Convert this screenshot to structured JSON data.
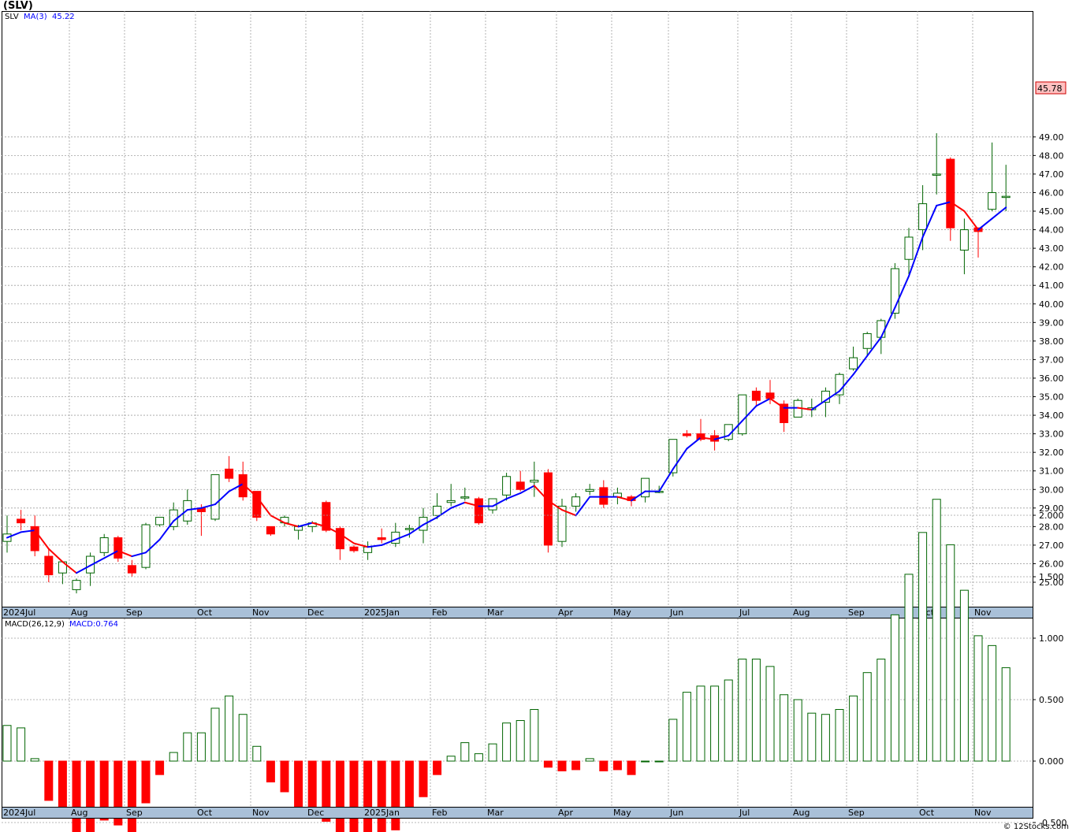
{
  "title": "(SLV)",
  "credit": "© 12Stocks.com",
  "price_panel": {
    "legend_symbol": "SLV",
    "legend_ma": "MA(3)",
    "legend_ma_value": "45.22",
    "last_price_tag": "45.78",
    "y_ticks": [
      "25.00",
      "26.00",
      "27.00",
      "28.00",
      "29.00",
      "30.00",
      "31.00",
      "32.00",
      "33.00",
      "34.00",
      "35.00",
      "36.00",
      "37.00",
      "38.00",
      "39.00",
      "40.00",
      "41.00",
      "42.00",
      "43.00",
      "44.00",
      "45.00",
      "46.00",
      "47.00",
      "48.00",
      "49.00"
    ]
  },
  "macd_panel": {
    "legend_name": "MACD(26,12,9)",
    "legend_value": "MACD:0.764",
    "y_ticks": [
      "-0.500",
      "0.000",
      "0.500",
      "1.000",
      "1.500",
      "2.000"
    ]
  },
  "x_ticks": [
    "2024Jul",
    "Aug",
    "Sep",
    "Oct",
    "Nov",
    "Dec",
    "2025Jan",
    "Feb",
    "Mar",
    "Apr",
    "May",
    "Jun",
    "Jul",
    "Aug",
    "Sep",
    "Oct",
    "Nov"
  ],
  "colors": {
    "up": "#006400",
    "down": "#ff0000",
    "ma_up": "#0000ff",
    "ma_down": "#ff0000",
    "grid": "#a0a0a0"
  },
  "chart_data": [
    {
      "type": "candlestick",
      "title": "(SLV)",
      "ylim": [
        24.4,
        49.5
      ],
      "grid": true,
      "series": [
        {
          "name": "SLV",
          "candles": [
            [
              27.2,
              28.6,
              26.6,
              27.6
            ],
            [
              28.4,
              28.9,
              27.8,
              28.2
            ],
            [
              28.0,
              28.6,
              26.4,
              26.7
            ],
            [
              26.4,
              26.8,
              25.0,
              25.4
            ],
            [
              25.5,
              26.1,
              24.9,
              26.1
            ],
            [
              24.6,
              25.2,
              24.4,
              25.1
            ],
            [
              25.5,
              26.6,
              24.8,
              26.4
            ],
            [
              26.6,
              27.6,
              26.4,
              27.4
            ],
            [
              27.4,
              27.5,
              26.1,
              26.3
            ],
            [
              25.9,
              26.2,
              25.3,
              25.5
            ],
            [
              25.8,
              28.2,
              25.7,
              28.1
            ],
            [
              28.1,
              28.5,
              28.0,
              28.5
            ],
            [
              28.0,
              29.3,
              27.8,
              28.9
            ],
            [
              28.3,
              30.0,
              28.1,
              29.4
            ],
            [
              29.0,
              29.2,
              27.5,
              28.8
            ],
            [
              28.4,
              30.7,
              28.3,
              30.8
            ],
            [
              31.1,
              31.8,
              30.4,
              30.6
            ],
            [
              30.8,
              31.5,
              29.4,
              29.6
            ],
            [
              29.9,
              29.9,
              28.3,
              28.5
            ],
            [
              28.0,
              28.0,
              27.5,
              27.6
            ],
            [
              28.2,
              28.6,
              28.0,
              28.5
            ],
            [
              27.8,
              28.1,
              27.3,
              28.0
            ],
            [
              28.0,
              28.3,
              27.7,
              28.2
            ],
            [
              29.3,
              29.4,
              27.7,
              27.8
            ],
            [
              27.9,
              28.0,
              26.2,
              26.8
            ],
            [
              26.9,
              27.0,
              26.6,
              26.7
            ],
            [
              26.6,
              27.2,
              26.2,
              26.9
            ],
            [
              27.4,
              27.9,
              27.1,
              27.3
            ],
            [
              27.1,
              28.2,
              26.9,
              27.7
            ],
            [
              27.9,
              28.1,
              27.4,
              27.9
            ],
            [
              27.8,
              29.0,
              27.1,
              28.5
            ],
            [
              28.6,
              29.8,
              28.4,
              29.1
            ],
            [
              29.3,
              30.3,
              29.1,
              29.4
            ],
            [
              29.6,
              30.1,
              29.4,
              29.6
            ],
            [
              29.5,
              29.6,
              28.1,
              28.2
            ],
            [
              28.9,
              29.5,
              28.7,
              29.5
            ],
            [
              29.7,
              30.9,
              29.4,
              30.7
            ],
            [
              30.4,
              31.0,
              29.9,
              30.0
            ],
            [
              30.4,
              31.5,
              29.6,
              30.5
            ],
            [
              30.9,
              31.1,
              26.6,
              27.0
            ],
            [
              27.2,
              29.5,
              26.9,
              29.1
            ],
            [
              29.1,
              29.8,
              28.8,
              29.6
            ],
            [
              29.9,
              30.3,
              29.7,
              30.0
            ],
            [
              30.1,
              30.5,
              29.0,
              29.2
            ],
            [
              29.6,
              30.1,
              29.2,
              29.8
            ],
            [
              29.6,
              29.7,
              29.1,
              29.4
            ],
            [
              29.6,
              30.5,
              29.3,
              30.6
            ],
            [
              29.9,
              30.2,
              29.8,
              29.9
            ],
            [
              30.9,
              32.7,
              30.7,
              32.7
            ],
            [
              33.0,
              33.2,
              32.8,
              32.9
            ],
            [
              33.0,
              33.8,
              32.6,
              32.7
            ],
            [
              32.9,
              33.2,
              32.1,
              32.6
            ],
            [
              32.7,
              33.5,
              32.6,
              33.5
            ],
            [
              33.0,
              35.1,
              32.9,
              35.1
            ],
            [
              35.3,
              35.5,
              34.5,
              34.8
            ],
            [
              35.2,
              35.9,
              34.6,
              34.9
            ],
            [
              34.6,
              34.8,
              33.1,
              33.6
            ],
            [
              33.9,
              34.9,
              33.9,
              34.8
            ],
            [
              34.3,
              34.9,
              33.9,
              34.4
            ],
            [
              34.7,
              35.5,
              33.9,
              35.3
            ],
            [
              35.1,
              36.3,
              34.6,
              36.2
            ],
            [
              36.5,
              37.7,
              36.4,
              37.1
            ],
            [
              37.6,
              38.5,
              37.2,
              38.4
            ],
            [
              38.2,
              39.2,
              37.3,
              39.1
            ],
            [
              39.5,
              42.2,
              39.2,
              41.9
            ],
            [
              42.4,
              44.1,
              41.6,
              43.6
            ],
            [
              44.0,
              46.4,
              42.9,
              45.4
            ],
            [
              47.0,
              49.2,
              45.9,
              47.0
            ],
            [
              47.8,
              47.9,
              43.4,
              44.1
            ],
            [
              42.9,
              44.6,
              41.6,
              44.0
            ],
            [
              44.1,
              44.1,
              42.5,
              43.9
            ],
            [
              45.1,
              48.7,
              45.0,
              46.0
            ],
            [
              45.8,
              47.5,
              45.0,
              45.8
            ]
          ]
        },
        {
          "name": "MA(3)",
          "values": [
            27.4,
            27.7,
            27.8,
            26.8,
            26.1,
            25.5,
            25.9,
            26.3,
            26.7,
            26.4,
            26.6,
            27.3,
            28.3,
            28.9,
            29.0,
            29.2,
            29.9,
            30.3,
            29.6,
            28.6,
            28.2,
            28.0,
            28.2,
            28.0,
            27.6,
            27.1,
            26.9,
            27.0,
            27.3,
            27.6,
            28.1,
            28.5,
            29.0,
            29.3,
            29.1,
            29.1,
            29.5,
            29.8,
            30.2,
            29.4,
            28.9,
            28.6,
            29.6,
            29.6,
            29.6,
            29.4,
            29.9,
            29.9,
            31.1,
            32.2,
            32.8,
            32.7,
            32.9,
            33.7,
            34.5,
            34.9,
            34.4,
            34.4,
            34.3,
            34.8,
            35.3,
            36.2,
            37.2,
            38.2,
            39.8,
            41.5,
            43.6,
            45.3,
            45.5,
            45.0,
            44.0,
            44.6,
            45.2
          ]
        },
        {
          "name": "MACD",
          "values": [
            0.29,
            0.27,
            0.02,
            -0.32,
            -0.42,
            -0.69,
            -0.63,
            -0.48,
            -0.52,
            -0.63,
            -0.34,
            -0.11,
            0.07,
            0.23,
            0.23,
            0.43,
            0.53,
            0.38,
            0.12,
            -0.17,
            -0.25,
            -0.42,
            -0.44,
            -0.49,
            -0.66,
            -0.76,
            -0.79,
            -0.68,
            -0.56,
            -0.46,
            -0.29,
            -0.11,
            0.04,
            0.15,
            0.06,
            0.14,
            0.31,
            0.33,
            0.42,
            -0.05,
            -0.08,
            -0.07,
            0.02,
            -0.08,
            -0.07,
            -0.11,
            0.0,
            0.0,
            0.34,
            0.56,
            0.61,
            0.61,
            0.66,
            0.83,
            0.83,
            0.77,
            0.54,
            0.5,
            0.39,
            0.38,
            0.42,
            0.53,
            0.72,
            0.83,
            1.19,
            1.52,
            1.86,
            2.13,
            1.76,
            1.39,
            1.02,
            0.94,
            0.76
          ]
        }
      ]
    }
  ]
}
